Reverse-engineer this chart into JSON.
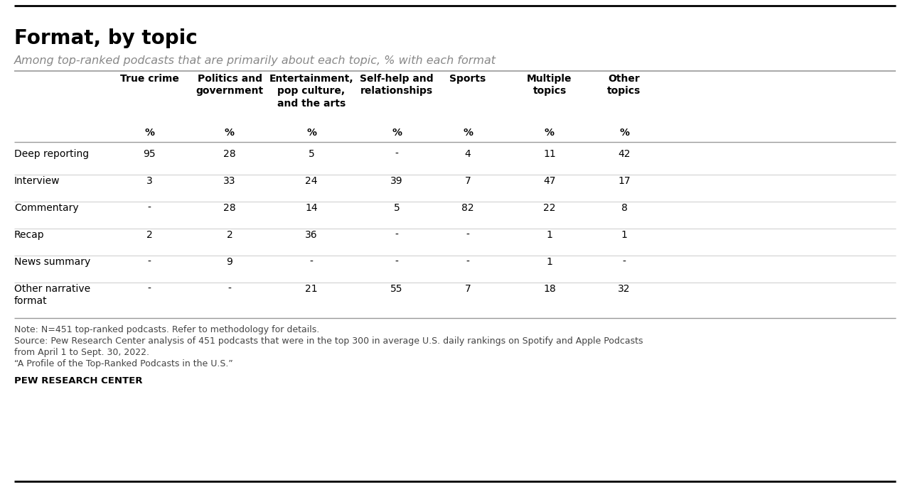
{
  "title": "Format, by topic",
  "subtitle": "Among top-ranked podcasts that are primarily about each topic, % with each format",
  "col_headers": [
    "True crime",
    "Politics and\ngovernment",
    "Entertainment,\npop culture,\nand the arts",
    "Self-help and\nrelationships",
    "Sports",
    "Multiple\ntopics",
    "Other\ntopics"
  ],
  "row_labels": [
    "Deep reporting",
    "Interview",
    "Commentary",
    "Recap",
    "News summary",
    "Other narrative\nformat"
  ],
  "data": [
    [
      "95",
      "28",
      "5",
      "-",
      "4",
      "11",
      "42"
    ],
    [
      "3",
      "33",
      "24",
      "39",
      "7",
      "47",
      "17"
    ],
    [
      "-",
      "28",
      "14",
      "5",
      "82",
      "22",
      "8"
    ],
    [
      "2",
      "2",
      "36",
      "-",
      "-",
      "1",
      "1"
    ],
    [
      "-",
      "9",
      "-",
      "-",
      "-",
      "1",
      "-"
    ],
    [
      "-",
      "-",
      "21",
      "55",
      "7",
      "18",
      "32"
    ]
  ],
  "note_line1": "Note: N=451 top-ranked podcasts. Refer to methodology for details.",
  "note_line2": "Source: Pew Research Center analysis of 451 podcasts that were in the top 300 in average U.S. daily rankings on Spotify and Apple Podcasts",
  "note_line3": "from April 1 to Sept. 30, 2022.",
  "note_line4": "“A Profile of the Top-Ranked Podcasts in the U.S.”",
  "source_label": "PEW RESEARCH CENTER",
  "bg_color": "#FFFFFF",
  "text_color": "#000000",
  "header_color": "#000000",
  "subtitle_color": "#888888",
  "note_color": "#444444",
  "dark_line_color": "#999999",
  "light_line_color": "#CCCCCC"
}
